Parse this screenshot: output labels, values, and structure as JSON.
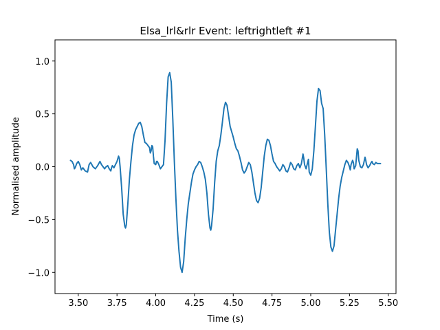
{
  "chart_data": {
    "type": "line",
    "title": "Elsa_lrl&rlr Event: leftrightleft #1",
    "xlabel": "Time (s)",
    "ylabel": "Normalised amplitude",
    "xlim": [
      3.35,
      5.55
    ],
    "ylim": [
      -1.2,
      1.2
    ],
    "x_ticks": [
      3.5,
      3.75,
      4.0,
      4.25,
      4.5,
      4.75,
      5.0,
      5.25,
      5.5
    ],
    "x_tick_labels": [
      "3.50",
      "3.75",
      "4.00",
      "4.25",
      "4.50",
      "4.75",
      "5.00",
      "5.25",
      "5.50"
    ],
    "y_ticks": [
      -1.0,
      -0.5,
      0.0,
      0.5,
      1.0
    ],
    "y_tick_labels": [
      "−1.0",
      "−0.5",
      "0.0",
      "0.5",
      "1.0"
    ],
    "grid": false,
    "line_color": "#1f77b4",
    "series": [
      {
        "points": [
          [
            3.45,
            0.06
          ],
          [
            3.46,
            0.05
          ],
          [
            3.47,
            0.02
          ],
          [
            3.475,
            -0.02
          ],
          [
            3.48,
            -0.01
          ],
          [
            3.49,
            0.03
          ],
          [
            3.5,
            0.05
          ],
          [
            3.51,
            0.02
          ],
          [
            3.52,
            -0.03
          ],
          [
            3.53,
            -0.01
          ],
          [
            3.545,
            -0.04
          ],
          [
            3.56,
            -0.05
          ],
          [
            3.57,
            0.02
          ],
          [
            3.58,
            0.04
          ],
          [
            3.595,
            0.0
          ],
          [
            3.61,
            -0.02
          ],
          [
            3.625,
            0.01
          ],
          [
            3.64,
            0.05
          ],
          [
            3.65,
            0.02
          ],
          [
            3.66,
            0.0
          ],
          [
            3.67,
            -0.02
          ],
          [
            3.68,
            0.0
          ],
          [
            3.69,
            0.01
          ],
          [
            3.7,
            -0.02
          ],
          [
            3.71,
            -0.04
          ],
          [
            3.715,
            -0.01
          ],
          [
            3.72,
            0.01
          ],
          [
            3.73,
            -0.01
          ],
          [
            3.74,
            0.02
          ],
          [
            3.75,
            0.05
          ],
          [
            3.76,
            0.1
          ],
          [
            3.765,
            0.08
          ],
          [
            3.77,
            0.0
          ],
          [
            3.78,
            -0.2
          ],
          [
            3.79,
            -0.45
          ],
          [
            3.8,
            -0.56
          ],
          [
            3.805,
            -0.58
          ],
          [
            3.81,
            -0.55
          ],
          [
            3.82,
            -0.35
          ],
          [
            3.83,
            -0.12
          ],
          [
            3.84,
            0.05
          ],
          [
            3.85,
            0.2
          ],
          [
            3.86,
            0.3
          ],
          [
            3.87,
            0.35
          ],
          [
            3.88,
            0.38
          ],
          [
            3.89,
            0.41
          ],
          [
            3.9,
            0.42
          ],
          [
            3.91,
            0.38
          ],
          [
            3.92,
            0.3
          ],
          [
            3.93,
            0.23
          ],
          [
            3.94,
            0.22
          ],
          [
            3.95,
            0.2
          ],
          [
            3.96,
            0.18
          ],
          [
            3.965,
            0.13
          ],
          [
            3.97,
            0.15
          ],
          [
            3.975,
            0.2
          ],
          [
            3.98,
            0.19
          ],
          [
            3.985,
            0.1
          ],
          [
            3.99,
            0.03
          ],
          [
            4.0,
            0.02
          ],
          [
            4.005,
            0.05
          ],
          [
            4.01,
            0.05
          ],
          [
            4.02,
            0.02
          ],
          [
            4.03,
            -0.02
          ],
          [
            4.04,
            0.0
          ],
          [
            4.05,
            0.02
          ],
          [
            4.06,
            0.25
          ],
          [
            4.07,
            0.6
          ],
          [
            4.08,
            0.85
          ],
          [
            4.09,
            0.89
          ],
          [
            4.1,
            0.8
          ],
          [
            4.11,
            0.45
          ],
          [
            4.12,
            0.05
          ],
          [
            4.13,
            -0.3
          ],
          [
            4.14,
            -0.6
          ],
          [
            4.15,
            -0.8
          ],
          [
            4.16,
            -0.95
          ],
          [
            4.17,
            -1.0
          ],
          [
            4.18,
            -0.9
          ],
          [
            4.19,
            -0.68
          ],
          [
            4.2,
            -0.5
          ],
          [
            4.21,
            -0.35
          ],
          [
            4.22,
            -0.25
          ],
          [
            4.23,
            -0.15
          ],
          [
            4.24,
            -0.07
          ],
          [
            4.25,
            -0.03
          ],
          [
            4.26,
            0.0
          ],
          [
            4.27,
            0.02
          ],
          [
            4.28,
            0.05
          ],
          [
            4.29,
            0.04
          ],
          [
            4.295,
            0.02
          ],
          [
            4.3,
            0.0
          ],
          [
            4.31,
            -0.05
          ],
          [
            4.32,
            -0.12
          ],
          [
            4.33,
            -0.25
          ],
          [
            4.34,
            -0.45
          ],
          [
            4.35,
            -0.58
          ],
          [
            4.355,
            -0.6
          ],
          [
            4.36,
            -0.56
          ],
          [
            4.37,
            -0.4
          ],
          [
            4.38,
            -0.15
          ],
          [
            4.39,
            0.05
          ],
          [
            4.4,
            0.15
          ],
          [
            4.41,
            0.2
          ],
          [
            4.42,
            0.3
          ],
          [
            4.43,
            0.42
          ],
          [
            4.44,
            0.55
          ],
          [
            4.45,
            0.61
          ],
          [
            4.46,
            0.58
          ],
          [
            4.47,
            0.48
          ],
          [
            4.48,
            0.38
          ],
          [
            4.49,
            0.33
          ],
          [
            4.5,
            0.28
          ],
          [
            4.51,
            0.22
          ],
          [
            4.52,
            0.17
          ],
          [
            4.53,
            0.15
          ],
          [
            4.54,
            0.1
          ],
          [
            4.55,
            0.04
          ],
          [
            4.56,
            -0.03
          ],
          [
            4.57,
            -0.06
          ],
          [
            4.58,
            -0.04
          ],
          [
            4.59,
            0.0
          ],
          [
            4.6,
            0.04
          ],
          [
            4.61,
            0.02
          ],
          [
            4.62,
            -0.05
          ],
          [
            4.63,
            -0.15
          ],
          [
            4.64,
            -0.25
          ],
          [
            4.65,
            -0.32
          ],
          [
            4.66,
            -0.34
          ],
          [
            4.67,
            -0.3
          ],
          [
            4.68,
            -0.2
          ],
          [
            4.69,
            -0.05
          ],
          [
            4.7,
            0.1
          ],
          [
            4.71,
            0.2
          ],
          [
            4.72,
            0.26
          ],
          [
            4.73,
            0.25
          ],
          [
            4.74,
            0.2
          ],
          [
            4.75,
            0.12
          ],
          [
            4.76,
            0.05
          ],
          [
            4.77,
            0.03
          ],
          [
            4.78,
            0.0
          ],
          [
            4.79,
            -0.02
          ],
          [
            4.8,
            -0.04
          ],
          [
            4.81,
            -0.02
          ],
          [
            4.82,
            0.02
          ],
          [
            4.83,
            0.0
          ],
          [
            4.84,
            -0.04
          ],
          [
            4.85,
            -0.05
          ],
          [
            4.86,
            -0.01
          ],
          [
            4.87,
            0.04
          ],
          [
            4.88,
            0.02
          ],
          [
            4.89,
            -0.02
          ],
          [
            4.9,
            -0.03
          ],
          [
            4.91,
            0.01
          ],
          [
            4.92,
            0.03
          ],
          [
            4.93,
            -0.01
          ],
          [
            4.94,
            0.03
          ],
          [
            4.95,
            0.12
          ],
          [
            4.955,
            0.08
          ],
          [
            4.96,
            0.02
          ],
          [
            4.97,
            -0.02
          ],
          [
            4.98,
            0.04
          ],
          [
            4.985,
            0.07
          ],
          [
            4.99,
            -0.05
          ],
          [
            5.0,
            -0.08
          ],
          [
            5.01,
            -0.02
          ],
          [
            5.02,
            0.15
          ],
          [
            5.03,
            0.38
          ],
          [
            5.04,
            0.62
          ],
          [
            5.05,
            0.74
          ],
          [
            5.06,
            0.72
          ],
          [
            5.07,
            0.6
          ],
          [
            5.08,
            0.55
          ],
          [
            5.09,
            0.3
          ],
          [
            5.1,
            -0.02
          ],
          [
            5.11,
            -0.35
          ],
          [
            5.12,
            -0.62
          ],
          [
            5.13,
            -0.76
          ],
          [
            5.14,
            -0.8
          ],
          [
            5.15,
            -0.75
          ],
          [
            5.16,
            -0.6
          ],
          [
            5.17,
            -0.45
          ],
          [
            5.18,
            -0.3
          ],
          [
            5.19,
            -0.18
          ],
          [
            5.2,
            -0.1
          ],
          [
            5.21,
            -0.04
          ],
          [
            5.22,
            0.02
          ],
          [
            5.23,
            0.06
          ],
          [
            5.24,
            0.04
          ],
          [
            5.25,
            0.0
          ],
          [
            5.255,
            -0.03
          ],
          [
            5.26,
            0.02
          ],
          [
            5.27,
            0.06
          ],
          [
            5.275,
            0.04
          ],
          [
            5.28,
            -0.02
          ],
          [
            5.29,
            0.01
          ],
          [
            5.3,
            0.17
          ],
          [
            5.305,
            0.15
          ],
          [
            5.31,
            0.06
          ],
          [
            5.32,
            0.0
          ],
          [
            5.33,
            -0.01
          ],
          [
            5.34,
            0.02
          ],
          [
            5.35,
            0.09
          ],
          [
            5.355,
            0.06
          ],
          [
            5.36,
            0.02
          ],
          [
            5.37,
            -0.01
          ],
          [
            5.38,
            0.01
          ],
          [
            5.39,
            0.04
          ],
          [
            5.395,
            0.05
          ],
          [
            5.4,
            0.03
          ],
          [
            5.41,
            0.02
          ],
          [
            5.42,
            0.04
          ],
          [
            5.43,
            0.03
          ],
          [
            5.44,
            0.03
          ],
          [
            5.45,
            0.03
          ]
        ]
      }
    ]
  }
}
